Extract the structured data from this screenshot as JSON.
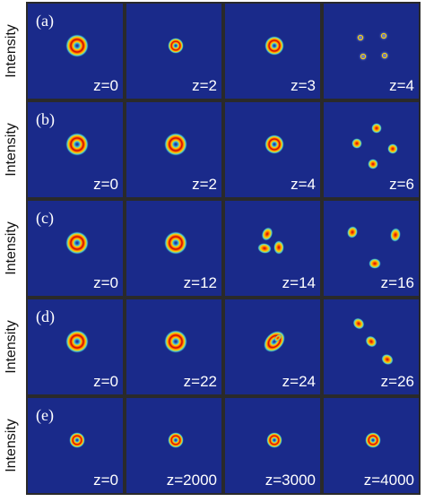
{
  "figure": {
    "ylabel": "Intensity",
    "colors": {
      "background": "#1a2a8a",
      "panel_border": "#2a2a2a",
      "label": "#ffffff",
      "ring_outer": "#ffd400",
      "ring_mid": "#ff6a00",
      "ring_core": "#c80000",
      "ring_inner": "#45c8d8"
    },
    "rows": [
      {
        "label": "(a)",
        "panels": [
          {
            "z": "z=0",
            "pattern": "ring-large"
          },
          {
            "z": "z=2",
            "pattern": "ring-small"
          },
          {
            "z": "z=3",
            "pattern": "ring-medium"
          },
          {
            "z": "z=4",
            "pattern": "four-faint-spots"
          }
        ]
      },
      {
        "label": "(b)",
        "panels": [
          {
            "z": "z=0",
            "pattern": "ring-large"
          },
          {
            "z": "z=2",
            "pattern": "ring-large"
          },
          {
            "z": "z=4",
            "pattern": "ring-medium"
          },
          {
            "z": "z=6",
            "pattern": "four-spots"
          }
        ]
      },
      {
        "label": "(c)",
        "panels": [
          {
            "z": "z=0",
            "pattern": "ring-large"
          },
          {
            "z": "z=12",
            "pattern": "ring-large"
          },
          {
            "z": "z=14",
            "pattern": "three-spots"
          },
          {
            "z": "z=16",
            "pattern": "three-spots-spread"
          }
        ]
      },
      {
        "label": "(d)",
        "panels": [
          {
            "z": "z=0",
            "pattern": "ring-large"
          },
          {
            "z": "z=22",
            "pattern": "ring-large"
          },
          {
            "z": "z=24",
            "pattern": "ring-distorted"
          },
          {
            "z": "z=26",
            "pattern": "three-spots-diagonal"
          }
        ]
      },
      {
        "label": "(e)",
        "panels": [
          {
            "z": "z=0",
            "pattern": "ring-small"
          },
          {
            "z": "z=2000",
            "pattern": "ring-small"
          },
          {
            "z": "z=3000",
            "pattern": "ring-small"
          },
          {
            "z": "z=4000",
            "pattern": "ring-small"
          }
        ]
      }
    ]
  }
}
